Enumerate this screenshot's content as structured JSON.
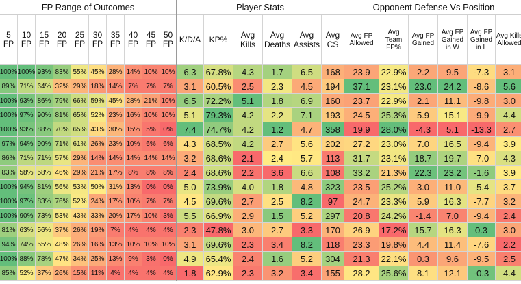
{
  "sections": [
    {
      "key": "fp",
      "title": "FP Range of Outcomes"
    },
    {
      "key": "ps",
      "title": "Player Stats"
    },
    {
      "key": "od",
      "title": "Opponent Defense Vs Position"
    }
  ],
  "columns": [
    {
      "label": "5 FP"
    },
    {
      "label": "10 FP"
    },
    {
      "label": "15 FP"
    },
    {
      "label": "20 FP"
    },
    {
      "label": "25 FP"
    },
    {
      "label": "30 FP"
    },
    {
      "label": "35 FP"
    },
    {
      "label": "40 FP"
    },
    {
      "label": "45 FP"
    },
    {
      "label": "50 FP"
    },
    {
      "label": "K/D/A"
    },
    {
      "label": "KP%"
    },
    {
      "label": "Avg Kills"
    },
    {
      "label": "Avg Deaths"
    },
    {
      "label": "Avg Assists"
    },
    {
      "label": "Avg CS"
    },
    {
      "label": "Avg FP Allowed"
    },
    {
      "label": "Avg Team FP%"
    },
    {
      "label": "Avg FP Gained"
    },
    {
      "label": "Avg FP Gained in W"
    },
    {
      "label": "Avg FP Gained in L"
    },
    {
      "label": "Avg Kills Allowed"
    }
  ],
  "colors": {
    "green": "#63be7b",
    "yellow": "#ffeb84",
    "red": "#f8696b",
    "border": "#d4d4d4",
    "divider": "#9a9a9a"
  },
  "rows": [
    [
      "100%",
      "100%",
      "93%",
      "83%",
      "55%",
      "45%",
      "28%",
      "14%",
      "10%",
      "10%",
      "6.3",
      "67.8%",
      "4.3",
      "1.7",
      "6.5",
      "168",
      "23.9",
      "22.9%",
      "2.2",
      "9.5",
      "-7.3",
      "3.1"
    ],
    [
      "89%",
      "71%",
      "64%",
      "32%",
      "29%",
      "18%",
      "14%",
      "7%",
      "7%",
      "7%",
      "3.1",
      "60.5%",
      "2.5",
      "2.3",
      "4.5",
      "194",
      "37.1",
      "23.1%",
      "23.0",
      "24.2",
      "-8.6",
      "5.6"
    ],
    [
      "100%",
      "93%",
      "86%",
      "79%",
      "66%",
      "59%",
      "45%",
      "28%",
      "21%",
      "10%",
      "6.5",
      "72.2%",
      "5.1",
      "1.8",
      "6.9",
      "160",
      "23.7",
      "22.9%",
      "2.1",
      "11.1",
      "-9.8",
      "3.0"
    ],
    [
      "100%",
      "97%",
      "90%",
      "81%",
      "65%",
      "52%",
      "23%",
      "16%",
      "10%",
      "10%",
      "5.1",
      "79.3%",
      "4.2",
      "2.2",
      "7.1",
      "193",
      "24.5",
      "25.3%",
      "5.9",
      "15.1",
      "-9.9",
      "4.4"
    ],
    [
      "100%",
      "93%",
      "88%",
      "70%",
      "65%",
      "43%",
      "30%",
      "15%",
      "5%",
      "0%",
      "7.4",
      "74.7%",
      "4.2",
      "1.2",
      "4.7",
      "358",
      "19.9",
      "28.0%",
      "-4.3",
      "5.1",
      "-13.3",
      "2.7"
    ],
    [
      "97%",
      "94%",
      "90%",
      "71%",
      "61%",
      "26%",
      "23%",
      "10%",
      "6%",
      "6%",
      "4.3",
      "68.5%",
      "4.2",
      "2.7",
      "5.6",
      "202",
      "27.2",
      "23.0%",
      "7.0",
      "16.5",
      "-9.4",
      "3.9"
    ],
    [
      "86%",
      "71%",
      "71%",
      "57%",
      "29%",
      "14%",
      "14%",
      "14%",
      "14%",
      "14%",
      "3.2",
      "68.6%",
      "2.1",
      "2.4",
      "5.7",
      "113",
      "31.7",
      "23.1%",
      "18.7",
      "19.7",
      "-7.0",
      "4.3"
    ],
    [
      "83%",
      "58%",
      "58%",
      "46%",
      "29%",
      "21%",
      "17%",
      "8%",
      "8%",
      "8%",
      "2.4",
      "68.6%",
      "2.2",
      "3.6",
      "6.6",
      "108",
      "33.2",
      "21.3%",
      "22.3",
      "23.2",
      "-1.6",
      "3.9"
    ],
    [
      "100%",
      "94%",
      "81%",
      "56%",
      "53%",
      "50%",
      "31%",
      "13%",
      "0%",
      "0%",
      "5.0",
      "73.9%",
      "4.0",
      "1.8",
      "4.8",
      "323",
      "23.5",
      "25.2%",
      "3.0",
      "11.0",
      "-5.4",
      "3.7"
    ],
    [
      "100%",
      "97%",
      "83%",
      "76%",
      "52%",
      "24%",
      "17%",
      "10%",
      "7%",
      "7%",
      "4.5",
      "69.6%",
      "2.7",
      "2.5",
      "8.2",
      "97",
      "24.7",
      "23.3%",
      "5.9",
      "16.3",
      "-7.7",
      "3.2"
    ],
    [
      "100%",
      "90%",
      "73%",
      "53%",
      "43%",
      "33%",
      "20%",
      "17%",
      "10%",
      "3%",
      "5.5",
      "66.9%",
      "2.9",
      "1.5",
      "5.2",
      "297",
      "20.8",
      "24.2%",
      "-1.4",
      "7.0",
      "-9.4",
      "2.4"
    ],
    [
      "81%",
      "63%",
      "56%",
      "37%",
      "26%",
      "19%",
      "7%",
      "4%",
      "4%",
      "4%",
      "2.3",
      "47.8%",
      "3.0",
      "2.7",
      "3.3",
      "170",
      "26.9",
      "17.2%",
      "15.7",
      "16.3",
      "0.3",
      "3.0"
    ],
    [
      "94%",
      "74%",
      "55%",
      "48%",
      "26%",
      "16%",
      "13%",
      "10%",
      "10%",
      "10%",
      "3.1",
      "69.6%",
      "2.3",
      "3.4",
      "8.2",
      "118",
      "23.3",
      "19.8%",
      "4.4",
      "11.4",
      "-7.6",
      "2.2"
    ],
    [
      "100%",
      "88%",
      "78%",
      "47%",
      "34%",
      "25%",
      "13%",
      "9%",
      "3%",
      "0%",
      "4.9",
      "65.4%",
      "2.4",
      "1.6",
      "5.2",
      "304",
      "21.3",
      "22.1%",
      "0.3",
      "9.6",
      "-9.5",
      "2.5"
    ],
    [
      "85%",
      "52%",
      "37%",
      "26%",
      "15%",
      "11%",
      "4%",
      "4%",
      "4%",
      "4%",
      "1.8",
      "62.9%",
      "2.3",
      "3.2",
      "3.4",
      "155",
      "28.2",
      "25.6%",
      "8.1",
      "12.1",
      "-0.3",
      "4.4"
    ]
  ]
}
